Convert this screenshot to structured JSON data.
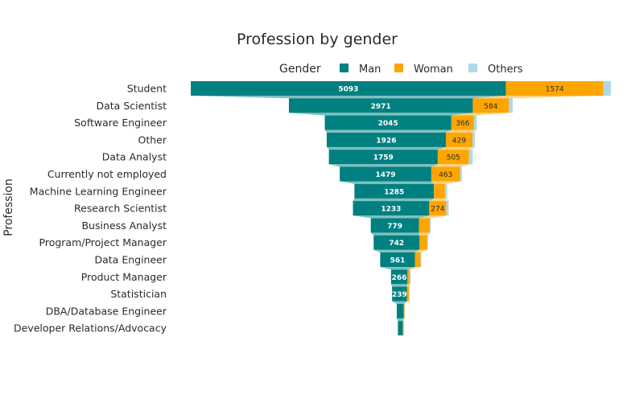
{
  "chart_data": {
    "type": "funnel",
    "title": "Profession by gender",
    "ylabel": "Profession",
    "legend_title": "Gender",
    "legend_position": "top",
    "categories": [
      "Student",
      "Data Scientist",
      "Software Engineer",
      "Other",
      "Data Analyst",
      "Currently not employed",
      "Machine Learning Engineer",
      "Research Scientist",
      "Business Analyst",
      "Program/Project Manager",
      "Data Engineer",
      "Product Manager",
      "Statistician",
      "DBA/Database Engineer",
      "Developer Relations/Advocacy"
    ],
    "series": [
      {
        "name": "Man",
        "color": "#008080",
        "values": [
          5093,
          2971,
          2045,
          1926,
          1759,
          1479,
          1285,
          1233,
          779,
          742,
          561,
          266,
          239,
          110,
          80
        ]
      },
      {
        "name": "Woman",
        "color": "#FFA500",
        "values": [
          1574,
          584,
          366,
          429,
          505,
          463,
          178,
          274,
          176,
          120,
          90,
          40,
          35,
          15,
          10
        ]
      },
      {
        "name": "Others",
        "color": "#ADD8E6",
        "values": [
          120,
          61,
          45,
          40,
          60,
          30,
          35,
          40,
          15,
          15,
          15,
          10,
          8,
          5,
          3
        ]
      }
    ]
  }
}
